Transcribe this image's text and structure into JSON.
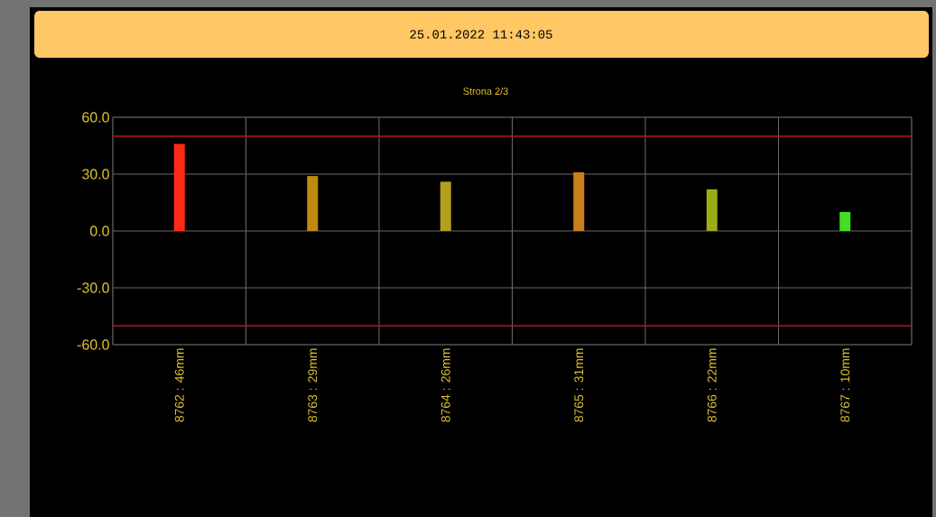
{
  "chart_data": {
    "type": "bar",
    "title": "25.01.2022 11:43:05",
    "subtitle": "Strona 2/3",
    "categories": [
      "8762 : 46mm",
      "8763 : 29mm",
      "8764 : 26mm",
      "8765 : 31mm",
      "8766 : 22mm",
      "8767 : 10mm"
    ],
    "values": [
      46,
      29,
      26,
      31,
      22,
      10
    ],
    "colors": [
      "#ff2a14",
      "#bf8a12",
      "#b3a01e",
      "#c97f1c",
      "#9cac14",
      "#44dd22"
    ],
    "ylim": [
      -60,
      60
    ],
    "yticks": [
      {
        "value": -60,
        "label": "-60.0"
      },
      {
        "value": -30,
        "label": "-30.0"
      },
      {
        "value": 0,
        "label": "0.0"
      },
      {
        "value": 30,
        "label": "30.0"
      },
      {
        "value": 60,
        "label": "60.0"
      }
    ],
    "grid": true,
    "ref_lines": [
      {
        "axis": "y",
        "value": 50,
        "color": "#c0102a"
      },
      {
        "axis": "y",
        "value": -50,
        "color": "#c0102a"
      }
    ]
  }
}
